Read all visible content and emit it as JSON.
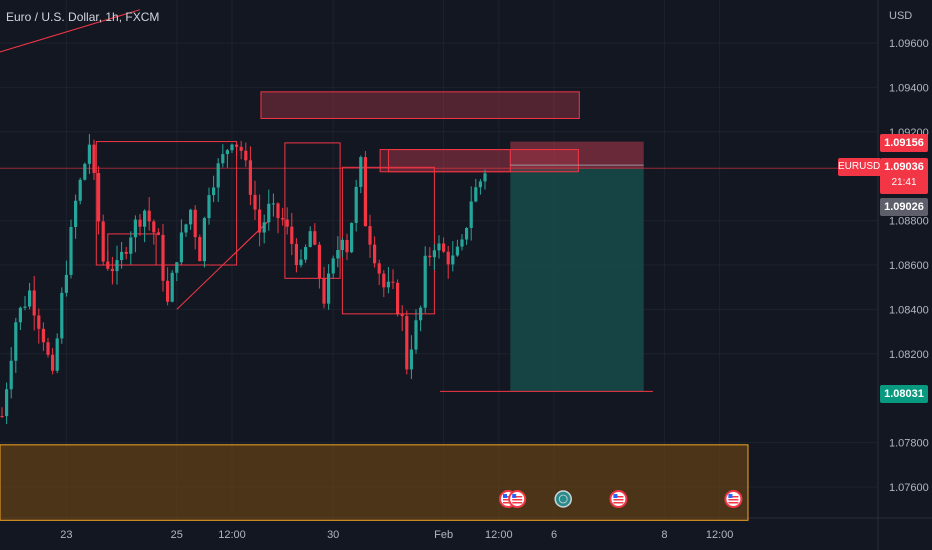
{
  "header": {
    "symbol_title": "Euro / U.S. Dollar, 1h, FXCM",
    "currency": "USD"
  },
  "price_tags": {
    "symbol": "EURUSD",
    "current_price": "1.09036",
    "countdown": "21:41",
    "stop_price": "1.09156",
    "bid_price": "1.09026",
    "target_price": "1.08031"
  },
  "colors": {
    "background": "#131722",
    "bull": "#26a69a",
    "bear": "#f23645",
    "zone_red": "#b2394a",
    "profit_zone": "#174b4a",
    "demand_zone": "#6b4416",
    "demand_border": "#f5a623",
    "grid": "#1e222d"
  },
  "event_icons": [
    "us-flag-icon",
    "us-flag-icon",
    "globe-icon",
    "us-flag-icon",
    "us-flag-icon"
  ],
  "chart_data": {
    "type": "candlestick",
    "title": "Euro / U.S. Dollar, 1h, FXCM",
    "y_axis": {
      "unit": "USD",
      "range": [
        1.0745,
        1.0975
      ],
      "ticks": [
        "1.09600",
        "1.09400",
        "1.09200",
        "1.08800",
        "1.08600",
        "1.08400",
        "1.08200",
        "1.07800",
        "1.07600"
      ]
    },
    "x_axis": {
      "ticks": [
        {
          "label": "23",
          "idx": 14
        },
        {
          "label": "25",
          "idx": 38
        },
        {
          "label": "12:00",
          "idx": 50
        },
        {
          "label": "30",
          "idx": 72
        },
        {
          "label": "Feb",
          "idx": 96
        },
        {
          "label": "12:00",
          "idx": 108
        },
        {
          "label": "6",
          "idx": 120
        },
        {
          "label": "8",
          "idx": 144
        },
        {
          "label": "12:00",
          "idx": 156
        }
      ]
    },
    "candles": {
      "anchors": [
        [
          0,
          1.0792
        ],
        [
          3,
          1.0835
        ],
        [
          6,
          1.0848
        ],
        [
          9,
          1.0828
        ],
        [
          11,
          1.0808
        ],
        [
          13,
          1.0845
        ],
        [
          16,
          1.0888
        ],
        [
          19,
          1.0915
        ],
        [
          22,
          1.0862
        ],
        [
          25,
          1.0858
        ],
        [
          28,
          1.0875
        ],
        [
          31,
          1.0885
        ],
        [
          34,
          1.087
        ],
        [
          36,
          1.0842
        ],
        [
          38,
          1.0865
        ],
        [
          41,
          1.0885
        ],
        [
          43,
          1.0865
        ],
        [
          45,
          1.0895
        ],
        [
          48,
          1.0908
        ],
        [
          50,
          1.0918
        ],
        [
          52,
          1.0912
        ],
        [
          54,
          1.0895
        ],
        [
          56,
          1.0875
        ],
        [
          58,
          1.0885
        ],
        [
          61,
          1.088
        ],
        [
          63,
          1.087
        ],
        [
          65,
          1.0858
        ],
        [
          67,
          1.0875
        ],
        [
          70,
          1.0845
        ],
        [
          72,
          1.086
        ],
        [
          74,
          1.0875
        ],
        [
          75,
          1.0868
        ],
        [
          77,
          1.0893
        ],
        [
          78,
          1.0905
        ],
        [
          79,
          1.088
        ],
        [
          81,
          1.0865
        ],
        [
          83,
          1.085
        ],
        [
          85,
          1.0848
        ],
        [
          87,
          1.0835
        ],
        [
          88,
          1.0815
        ],
        [
          89,
          1.0825
        ],
        [
          91,
          1.084
        ],
        [
          92,
          1.086
        ],
        [
          94,
          1.087
        ],
        [
          96,
          1.0865
        ],
        [
          98,
          1.0862
        ],
        [
          100,
          1.0868
        ],
        [
          102,
          1.089
        ],
        [
          104,
          1.0898
        ],
        [
          105,
          1.0903
        ]
      ]
    },
    "drawings": {
      "supply_zone_top": [
        1.0938,
        1.0926
      ],
      "supply_zone_mid": [
        1.0912,
        1.0902
      ],
      "stop_zone": [
        1.09156,
        1.09036
      ],
      "profit_zone": [
        1.09036,
        1.08031
      ],
      "demand_zone": [
        1.0779,
        1.0745
      ],
      "lines": [
        {
          "name": "trendline-top",
          "from": [
            -2,
            1.0955
          ],
          "to": [
            30,
            1.0975
          ]
        },
        {
          "name": "trendline-rise",
          "from": [
            38,
            1.084
          ],
          "to": [
            58,
            1.088
          ]
        },
        {
          "name": "trendline-rise-2",
          "from": [
            49,
            1.0862
          ],
          "to": [
            58,
            1.088
          ]
        }
      ]
    }
  }
}
